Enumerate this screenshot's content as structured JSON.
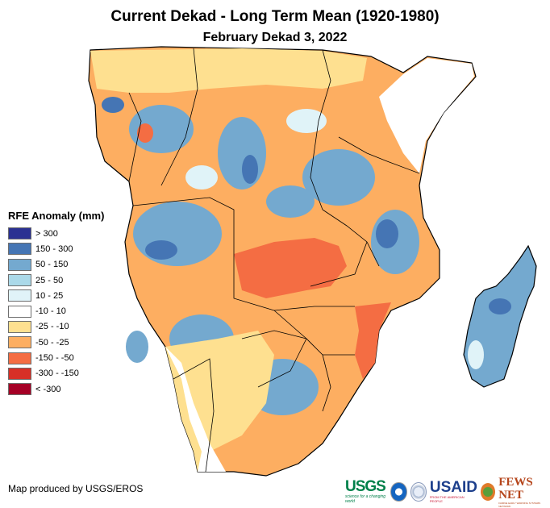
{
  "title": "Current Dekad - Long Term Mean (1920-1980)",
  "subtitle": "February Dekad 3, 2022",
  "legend": {
    "title": "RFE Anomaly (mm)",
    "items": [
      {
        "label": "> 300",
        "color": "#2b3192"
      },
      {
        "label": "150 - 300",
        "color": "#4575b4"
      },
      {
        "label": "50 - 150",
        "color": "#74a9cf"
      },
      {
        "label": "25 - 50",
        "color": "#abd9e9"
      },
      {
        "label": "10 - 25",
        "color": "#e0f3f8"
      },
      {
        "label": "-10 - 10",
        "color": "#ffffff"
      },
      {
        "label": "-25 - -10",
        "color": "#fee090"
      },
      {
        "label": "-50 - -25",
        "color": "#fdae61"
      },
      {
        "label": "-150 - -50",
        "color": "#f46d43"
      },
      {
        "label": "-300 - -150",
        "color": "#d73027"
      },
      {
        "label": "< -300",
        "color": "#a50026"
      }
    ]
  },
  "credit": "Map produced by USGS/EROS",
  "logos": {
    "usgs": "USGS",
    "usgs_tagline": "science for a changing world",
    "usaid": "USAID",
    "usaid_tagline": "FROM THE AMERICAN PEOPLE",
    "fews": "FEWS NET",
    "fews_tagline": "FAMINE EARLY WARNING SYSTEMS NETWORK"
  }
}
